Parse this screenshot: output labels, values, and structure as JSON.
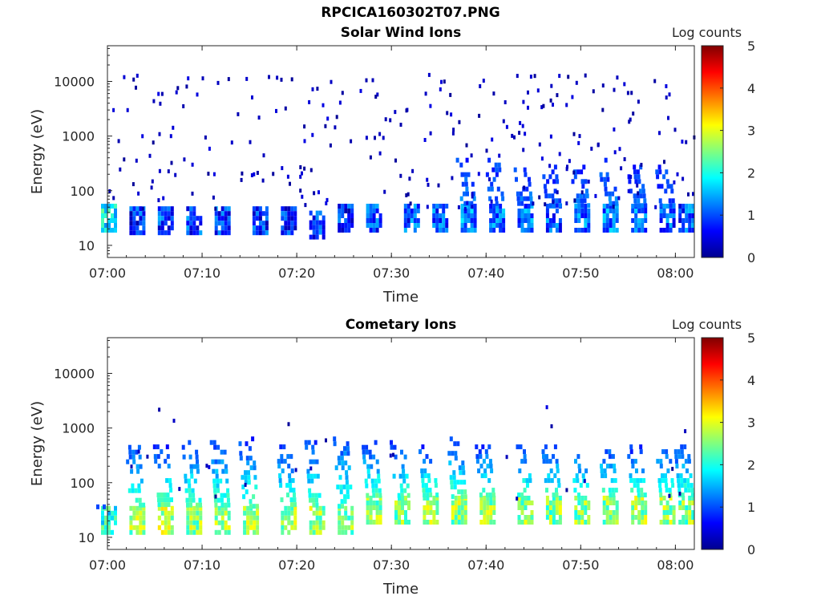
{
  "figure_title": "RPCICA160302T07.PNG",
  "chart_data": [
    {
      "type": "heatmap",
      "title": "Solar Wind Ions",
      "xlabel": "Time",
      "ylabel": "Energy (eV)",
      "y_scale": "log",
      "x_range": [
        "07:00",
        "08:02"
      ],
      "y_range": [
        6,
        45000
      ],
      "x_ticks": [
        "07:00",
        "07:10",
        "07:20",
        "07:30",
        "07:40",
        "07:50",
        "08:00"
      ],
      "y_ticks": [
        "10",
        "100",
        "1000",
        "10000"
      ],
      "colorbar": {
        "label": "Log counts",
        "min": 0,
        "max": 5,
        "ticks": [
          "0",
          "1",
          "2",
          "3",
          "4",
          "5"
        ],
        "colormap": "jet"
      },
      "bursts": [
        {
          "t": "07:00",
          "e_min": 20,
          "e_max": 40,
          "log_counts": 1.8
        },
        {
          "t": "07:03",
          "e_min": 18,
          "e_max": 38,
          "log_counts": 0.8
        },
        {
          "t": "07:06",
          "e_min": 18,
          "e_max": 38,
          "log_counts": 0.9
        },
        {
          "t": "07:09",
          "e_min": 18,
          "e_max": 38,
          "log_counts": 0.9
        },
        {
          "t": "07:12",
          "e_min": 18,
          "e_max": 38,
          "log_counts": 0.9
        },
        {
          "t": "07:16",
          "e_min": 18,
          "e_max": 38,
          "log_counts": 0.8
        },
        {
          "t": "07:19",
          "e_min": 18,
          "e_max": 38,
          "log_counts": 0.8
        },
        {
          "t": "07:22",
          "e_min": 15,
          "e_max": 38,
          "log_counts": 0.9
        },
        {
          "t": "07:25",
          "e_min": 20,
          "e_max": 38,
          "log_counts": 0.8
        },
        {
          "t": "07:28",
          "e_min": 20,
          "e_max": 38,
          "log_counts": 1.0
        },
        {
          "t": "07:32",
          "e_min": 20,
          "e_max": 40,
          "log_counts": 1.0
        },
        {
          "t": "07:35",
          "e_min": 20,
          "e_max": 40,
          "log_counts": 1.0
        },
        {
          "t": "07:38",
          "e_min": 20,
          "e_max": 400,
          "log_counts": 1.3
        },
        {
          "t": "07:41",
          "e_min": 20,
          "e_max": 400,
          "log_counts": 1.2
        },
        {
          "t": "07:44",
          "e_min": 20,
          "e_max": 400,
          "log_counts": 1.2
        },
        {
          "t": "07:47",
          "e_min": 20,
          "e_max": 300,
          "log_counts": 1.0
        },
        {
          "t": "07:50",
          "e_min": 20,
          "e_max": 300,
          "log_counts": 1.2
        },
        {
          "t": "07:53",
          "e_min": 20,
          "e_max": 400,
          "log_counts": 1.2
        },
        {
          "t": "07:56",
          "e_min": 20,
          "e_max": 300,
          "log_counts": 1.1
        },
        {
          "t": "07:59",
          "e_min": 20,
          "e_max": 300,
          "log_counts": 1.0
        },
        {
          "t": "08:01",
          "e_min": 20,
          "e_max": 40,
          "log_counts": 1.0
        }
      ]
    },
    {
      "type": "heatmap",
      "title": "Cometary Ions",
      "xlabel": "Time",
      "ylabel": "Energy (eV)",
      "y_scale": "log",
      "x_range": [
        "07:00",
        "08:02"
      ],
      "y_range": [
        6,
        45000
      ],
      "x_ticks": [
        "07:00",
        "07:10",
        "07:20",
        "07:30",
        "07:40",
        "07:50",
        "08:00"
      ],
      "y_ticks": [
        "10",
        "100",
        "1000",
        "10000"
      ],
      "colorbar": {
        "label": "Log counts",
        "min": 0,
        "max": 5,
        "ticks": [
          "0",
          "1",
          "2",
          "3",
          "4",
          "5"
        ],
        "colormap": "jet"
      },
      "bursts": [
        {
          "t": "07:00",
          "e_min": 13,
          "e_max": 40,
          "log_counts": 2.0
        },
        {
          "t": "07:03",
          "e_min": 13,
          "e_max": 600,
          "log_counts": 2.6
        },
        {
          "t": "07:06",
          "e_min": 13,
          "e_max": 500,
          "log_counts": 2.7
        },
        {
          "t": "07:09",
          "e_min": 13,
          "e_max": 600,
          "log_counts": 2.6
        },
        {
          "t": "07:12",
          "e_min": 13,
          "e_max": 600,
          "log_counts": 2.6
        },
        {
          "t": "07:15",
          "e_min": 13,
          "e_max": 700,
          "log_counts": 2.6
        },
        {
          "t": "07:19",
          "e_min": 13,
          "e_max": 500,
          "log_counts": 2.6
        },
        {
          "t": "07:22",
          "e_min": 13,
          "e_max": 600,
          "log_counts": 2.6
        },
        {
          "t": "07:25",
          "e_min": 13,
          "e_max": 700,
          "log_counts": 2.5
        },
        {
          "t": "07:28",
          "e_min": 20,
          "e_max": 600,
          "log_counts": 2.6
        },
        {
          "t": "07:31",
          "e_min": 20,
          "e_max": 600,
          "log_counts": 2.5
        },
        {
          "t": "07:34",
          "e_min": 20,
          "e_max": 500,
          "log_counts": 2.6
        },
        {
          "t": "07:37",
          "e_min": 20,
          "e_max": 700,
          "log_counts": 2.6
        },
        {
          "t": "07:40",
          "e_min": 20,
          "e_max": 500,
          "log_counts": 2.6
        },
        {
          "t": "07:44",
          "e_min": 20,
          "e_max": 500,
          "log_counts": 2.6
        },
        {
          "t": "07:47",
          "e_min": 20,
          "e_max": 500,
          "log_counts": 2.5
        },
        {
          "t": "07:50",
          "e_min": 20,
          "e_max": 500,
          "log_counts": 2.5
        },
        {
          "t": "07:53",
          "e_min": 20,
          "e_max": 500,
          "log_counts": 2.6
        },
        {
          "t": "07:56",
          "e_min": 20,
          "e_max": 500,
          "log_counts": 2.6
        },
        {
          "t": "07:59",
          "e_min": 20,
          "e_max": 500,
          "log_counts": 2.6
        },
        {
          "t": "08:01",
          "e_min": 20,
          "e_max": 500,
          "log_counts": 2.5
        }
      ]
    }
  ]
}
